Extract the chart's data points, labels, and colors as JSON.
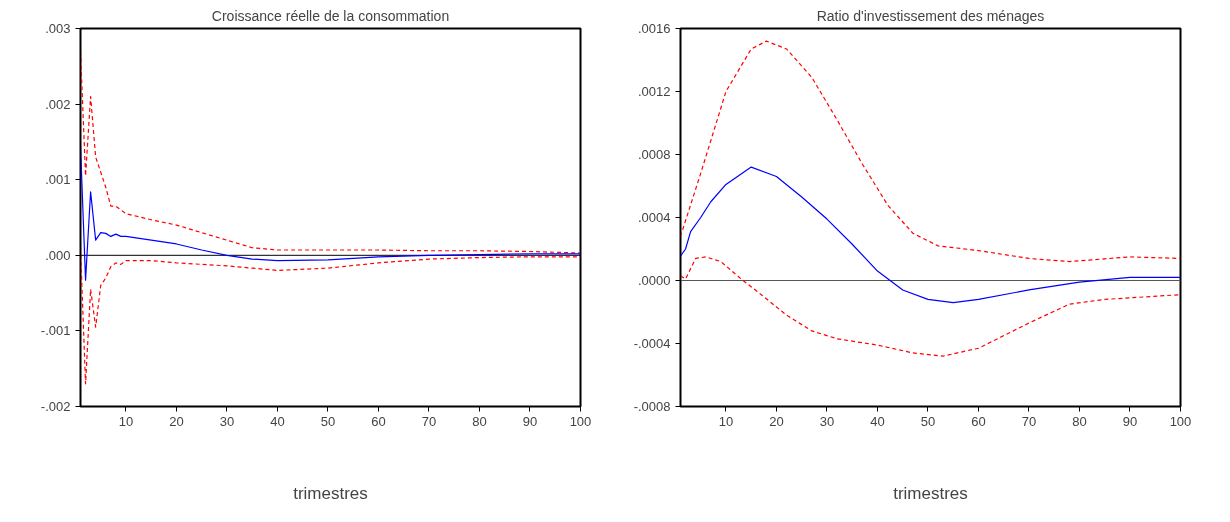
{
  "chart_data": [
    {
      "type": "line",
      "title": "Croissance réelle de la consommation",
      "xlabel": "trimestres",
      "xlim": [
        1,
        100
      ],
      "xticks": [
        10,
        20,
        30,
        40,
        50,
        60,
        70,
        80,
        90,
        100
      ],
      "ylim": [
        -0.002,
        0.003
      ],
      "yticks": [
        {
          "value": -0.002,
          "label": "-.002"
        },
        {
          "value": -0.001,
          "label": "-.001"
        },
        {
          "value": 0,
          "label": ".000"
        },
        {
          "value": 0.001,
          "label": ".001"
        },
        {
          "value": 0.002,
          "label": ".002"
        },
        {
          "value": 0.003,
          "label": ".003"
        }
      ],
      "ref_lines": [
        {
          "axis": "y",
          "value": 0,
          "color": "#000000"
        }
      ],
      "series": [
        {
          "color": "#ff0000",
          "line_style": "dashed",
          "x": [
            1,
            2,
            3,
            4,
            5,
            6,
            7,
            8,
            9,
            10,
            15,
            20,
            25,
            30,
            35,
            40,
            50,
            60,
            70,
            80,
            90,
            100
          ],
          "values": [
            0.0027,
            0.00105,
            0.0021,
            0.0013,
            0.0011,
            0.0009,
            0.00065,
            0.00065,
            0.0006,
            0.00055,
            0.00047,
            0.0004,
            0.0003,
            0.0002,
            0.0001,
            7e-05,
            7e-05,
            7e-05,
            6e-05,
            6e-05,
            5e-05,
            3e-05
          ]
        },
        {
          "color": "#0000ff",
          "line_style": "solid",
          "x": [
            1,
            2,
            3,
            4,
            5,
            6,
            7,
            8,
            9,
            10,
            15,
            20,
            25,
            30,
            35,
            40,
            50,
            60,
            70,
            80,
            90,
            100
          ],
          "values": [
            0.00145,
            -0.00033,
            0.00084,
            0.0002,
            0.0003,
            0.00029,
            0.00025,
            0.00028,
            0.00025,
            0.00025,
            0.0002,
            0.00015,
            7e-05,
            0.0,
            -5e-05,
            -7e-05,
            -6e-05,
            -2e-05,
            0.0,
            1e-05,
            2e-05,
            2e-05
          ]
        },
        {
          "color": "#ff0000",
          "line_style": "dashed",
          "x": [
            1,
            2,
            3,
            4,
            5,
            6,
            7,
            8,
            9,
            10,
            15,
            20,
            25,
            30,
            35,
            40,
            50,
            60,
            70,
            80,
            90,
            100
          ],
          "values": [
            0.0001,
            -0.0017,
            -0.00045,
            -0.00095,
            -0.0004,
            -0.0003,
            -0.00015,
            -0.0001,
            -0.00012,
            -7e-05,
            -7e-05,
            -0.0001,
            -0.00012,
            -0.00014,
            -0.00017,
            -0.0002,
            -0.00017,
            -0.0001,
            -5e-05,
            -3e-05,
            -2e-05,
            -2e-05
          ]
        }
      ]
    },
    {
      "type": "line",
      "title": "Ratio d'investissement des ménages",
      "xlabel": "trimestres",
      "xlim": [
        1,
        100
      ],
      "xticks": [
        10,
        20,
        30,
        40,
        50,
        60,
        70,
        80,
        90,
        100
      ],
      "ylim": [
        -0.0008,
        0.0016
      ],
      "yticks": [
        {
          "value": -0.0008,
          "label": "-.0008"
        },
        {
          "value": -0.0004,
          "label": "-.0004"
        },
        {
          "value": 0,
          "label": ".0000"
        },
        {
          "value": 0.0004,
          "label": ".0004"
        },
        {
          "value": 0.0008,
          "label": ".0008"
        },
        {
          "value": 0.0012,
          "label": ".0012"
        },
        {
          "value": 0.0016,
          "label": ".0016"
        }
      ],
      "ref_lines": [
        {
          "axis": "y",
          "value": 0,
          "color": "#555555"
        }
      ],
      "series": [
        {
          "color": "#ff0000",
          "line_style": "dashed",
          "x": [
            1,
            5,
            10,
            15,
            18,
            22,
            27,
            32,
            37,
            42,
            47,
            52,
            60,
            70,
            78,
            90,
            100
          ],
          "values": [
            0.00028,
            0.00068,
            0.0012,
            0.00147,
            0.00152,
            0.00147,
            0.00129,
            0.00102,
            0.00074,
            0.00048,
            0.0003,
            0.00022,
            0.00019,
            0.00014,
            0.00012,
            0.00015,
            0.00014
          ]
        },
        {
          "color": "#0000ff",
          "line_style": "solid",
          "x": [
            1,
            2,
            3,
            5,
            7,
            10,
            15,
            20,
            25,
            30,
            35,
            40,
            45,
            50,
            55,
            60,
            70,
            80,
            90,
            100
          ],
          "values": [
            0.000155,
            0.0002,
            0.00031,
            0.0004,
            0.0005,
            0.00061,
            0.00072,
            0.00066,
            0.00053,
            0.00039,
            0.00023,
            6e-05,
            -6e-05,
            -0.00012,
            -0.00014,
            -0.00012,
            -6e-05,
            -1e-05,
            2e-05,
            2e-05
          ]
        },
        {
          "color": "#ff0000",
          "line_style": "dashed",
          "x": [
            1,
            2,
            4,
            6,
            9,
            13,
            17,
            22,
            27,
            32,
            40,
            47,
            53,
            60,
            70,
            78,
            85,
            100
          ],
          "values": [
            3e-05,
            1e-05,
            0.00014,
            0.00015,
            0.00012,
            1e-05,
            -9e-05,
            -0.00022,
            -0.00032,
            -0.00037,
            -0.00041,
            -0.00046,
            -0.00048,
            -0.00043,
            -0.00027,
            -0.00015,
            -0.00012,
            -9e-05
          ]
        }
      ]
    }
  ]
}
